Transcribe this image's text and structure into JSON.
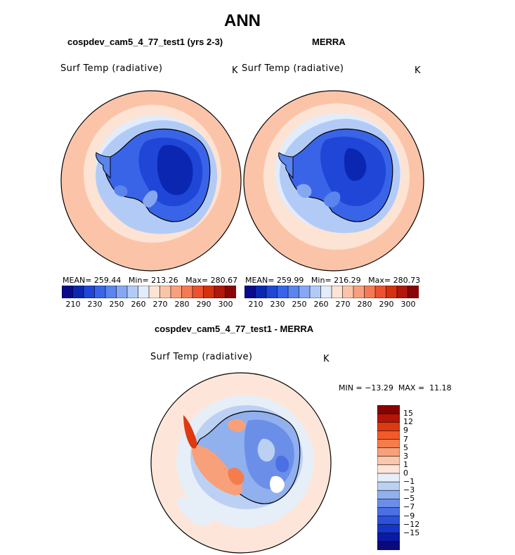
{
  "title": "ANN",
  "panels": {
    "left": {
      "case_label": "cospdev_cam5_4_77_test1 (yrs 2-3)",
      "variable": "Surf Temp (radiative)",
      "units": "K",
      "stats": {
        "mean_label": "MEAN=",
        "mean": "259.44",
        "min_label": "Min=",
        "min": "213.26",
        "max_label": "Max=",
        "max": "280.67"
      }
    },
    "right": {
      "case_label": "MERRA",
      "variable": "Surf Temp (radiative)",
      "units": "K",
      "stats": {
        "mean_label": "MEAN=",
        "mean": "259.99",
        "min_label": "Min=",
        "min": "216.29",
        "max_label": "Max=",
        "max": "280.73"
      }
    },
    "diff": {
      "case_label": "cospdev_cam5_4_77_test1 - MERRA",
      "variable": "Surf Temp (radiative)",
      "units": "K",
      "range": {
        "min_label": "MIN =",
        "min": "−13.29",
        "max_label": "MAX =",
        "max": "11.18"
      }
    }
  },
  "colorbar_abs": {
    "colors": [
      "#0a0a8c",
      "#0b27b2",
      "#1f46d6",
      "#3a64e8",
      "#5a84ee",
      "#86a8f2",
      "#b2cbf6",
      "#e3ecfb",
      "#fce3d3",
      "#fbc4a9",
      "#f8a07e",
      "#f47a55",
      "#ec5130",
      "#d5310f",
      "#b1170a",
      "#880606"
    ],
    "ticks": [
      "210",
      "230",
      "250",
      "260",
      "270",
      "280",
      "290",
      "300"
    ]
  },
  "colorbar_diff": {
    "colors": [
      "#870303",
      "#b31508",
      "#de3a12",
      "#f25a2a",
      "#f57c4d",
      "#f8a07a",
      "#fbc8ab",
      "#fde6d9",
      "#e6eef8",
      "#bcd0f4",
      "#91b0ee",
      "#6b8fe9",
      "#4a70e3",
      "#2c52dc",
      "#1535c9",
      "#0b1aa4",
      "#0a0a7e"
    ],
    "ticks": [
      "15",
      "12",
      "9",
      "7",
      "5",
      "3",
      "1",
      "0",
      "−1",
      "−3",
      "−5",
      "−7",
      "−9",
      "−12",
      "−15"
    ]
  },
  "map_colors": {
    "warm_ocean": "#fbc4a9",
    "mid_ocean": "#fce3d3",
    "cold_ocean": "#e3ecfb",
    "sea_ice": "#b2cbf6",
    "ice_edge": "#86a8f2",
    "coast_ice": "#5a84ee",
    "ice_sheet": "#3a64e8",
    "plateau": "#1f46d6",
    "dome": "#0b27b2",
    "diff_neutral": "#fde6d9",
    "diff_cool": "#e6eef8",
    "diff_cool2": "#bcd0f4",
    "diff_cool3": "#91b0ee",
    "diff_cool4": "#6b8fe9",
    "diff_warm": "#f8a07a",
    "diff_warm2": "#f57c4d",
    "diff_warm3": "#de3a12",
    "diff_white": "#ffffff"
  }
}
